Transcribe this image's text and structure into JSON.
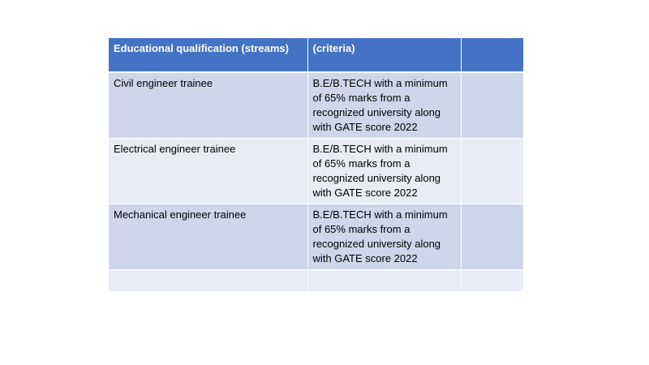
{
  "table": {
    "header": {
      "col1": "Educational qualification (streams)",
      "col2": "(criteria)",
      "col3": ""
    },
    "rows": [
      {
        "stream": "Civil engineer trainee",
        "criteria": "B.E/B.TECH with a minimum of 65% marks from a recognized university along with GATE score 2022",
        "extra": ""
      },
      {
        "stream": "Electrical engineer trainee",
        "criteria": "B.E/B.TECH with a minimum of 65% marks from a recognized university along with GATE score 2022",
        "extra": ""
      },
      {
        "stream": "Mechanical engineer trainee",
        "criteria": "B.E/B.TECH with a minimum of 65% marks from a recognized university along with GATE score 2022",
        "extra": ""
      },
      {
        "stream": "",
        "criteria": "",
        "extra": ""
      }
    ],
    "colors": {
      "header_bg": "#4472c4",
      "row_dark": "#cfd5ea",
      "row_light": "#e9ebf5"
    }
  }
}
